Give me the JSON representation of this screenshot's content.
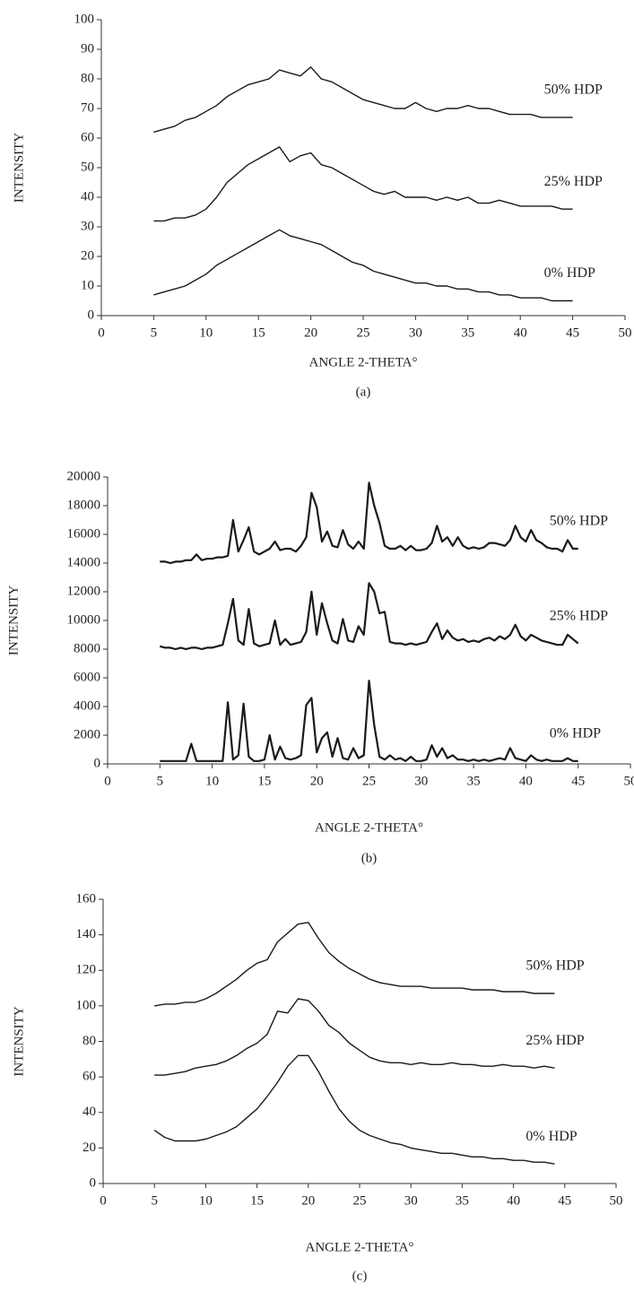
{
  "chart_data": [
    {
      "type": "line",
      "y_label": "INTENSITY",
      "x_label": "ANGLE 2-THETA°",
      "caption": "(a)",
      "xlim": [
        0,
        50
      ],
      "ylim": [
        0,
        100
      ],
      "xticks": [
        0,
        5,
        10,
        15,
        20,
        25,
        30,
        35,
        40,
        45,
        50
      ],
      "yticks": [
        0,
        10,
        20,
        30,
        40,
        50,
        60,
        70,
        80,
        90,
        100
      ],
      "x": [
        5,
        6,
        7,
        8,
        9,
        10,
        11,
        12,
        13,
        14,
        15,
        16,
        17,
        18,
        19,
        20,
        21,
        22,
        23,
        24,
        25,
        26,
        27,
        28,
        29,
        30,
        31,
        32,
        33,
        34,
        35,
        36,
        37,
        38,
        39,
        40,
        41,
        42,
        43,
        44,
        45
      ],
      "series": [
        {
          "name": "50% HDP",
          "color": "#1a1a1a",
          "values": [
            62,
            63,
            64,
            66,
            67,
            69,
            71,
            74,
            76,
            78,
            79,
            80,
            83,
            82,
            81,
            84,
            80,
            79,
            77,
            75,
            73,
            72,
            71,
            70,
            70,
            72,
            70,
            69,
            70,
            70,
            71,
            70,
            70,
            69,
            68,
            68,
            68,
            67,
            67,
            67,
            67
          ]
        },
        {
          "name": "25% HDP",
          "color": "#1a1a1a",
          "values": [
            32,
            32,
            33,
            33,
            34,
            36,
            40,
            45,
            48,
            51,
            53,
            55,
            57,
            52,
            54,
            55,
            51,
            50,
            48,
            46,
            44,
            42,
            41,
            42,
            40,
            40,
            40,
            39,
            40,
            39,
            40,
            38,
            38,
            39,
            38,
            37,
            37,
            37,
            37,
            36,
            36
          ]
        },
        {
          "name": "0% HDP",
          "color": "#1a1a1a",
          "values": [
            7,
            8,
            9,
            10,
            12,
            14,
            17,
            19,
            21,
            23,
            25,
            27,
            29,
            27,
            26,
            25,
            24,
            22,
            20,
            18,
            17,
            15,
            14,
            13,
            12,
            11,
            11,
            10,
            10,
            9,
            9,
            8,
            8,
            7,
            7,
            6,
            6,
            6,
            5,
            5,
            5
          ]
        }
      ]
    },
    {
      "type": "line",
      "y_label": "INTENSITY",
      "x_label": "ANGLE 2-THETA°",
      "caption": "(b)",
      "xlim": [
        0,
        50
      ],
      "ylim": [
        0,
        20000
      ],
      "xticks": [
        0,
        5,
        10,
        15,
        20,
        25,
        30,
        35,
        40,
        45,
        50
      ],
      "yticks": [
        0,
        2000,
        4000,
        6000,
        8000,
        10000,
        12000,
        14000,
        16000,
        18000,
        20000
      ],
      "x": [
        5,
        5.5,
        6,
        6.5,
        7,
        7.5,
        8,
        8.5,
        9,
        9.5,
        10,
        10.5,
        11,
        11.5,
        12,
        12.5,
        13,
        13.5,
        14,
        14.5,
        15,
        15.5,
        16,
        16.5,
        17,
        17.5,
        18,
        18.5,
        19,
        19.5,
        20,
        20.5,
        21,
        21.5,
        22,
        22.5,
        23,
        23.5,
        24,
        24.5,
        25,
        25.5,
        26,
        26.5,
        27,
        27.5,
        28,
        28.5,
        29,
        29.5,
        30,
        30.5,
        31,
        31.5,
        32,
        32.5,
        33,
        33.5,
        34,
        34.5,
        35,
        35.5,
        36,
        36.5,
        37,
        37.5,
        38,
        38.5,
        39,
        39.5,
        40,
        40.5,
        41,
        41.5,
        42,
        42.5,
        43,
        43.5,
        44,
        44.5,
        45
      ],
      "series": [
        {
          "name": "50% HDP",
          "color": "#1a1a1a",
          "values": [
            14100,
            14100,
            14000,
            14100,
            14100,
            14200,
            14200,
            14600,
            14200,
            14300,
            14300,
            14400,
            14400,
            14500,
            17000,
            14800,
            15600,
            16500,
            14800,
            14600,
            14800,
            15000,
            15500,
            14900,
            15000,
            15000,
            14800,
            15200,
            15800,
            18900,
            17900,
            15500,
            16200,
            15200,
            15100,
            16300,
            15300,
            15000,
            15500,
            15000,
            19600,
            18000,
            16800,
            15200,
            15000,
            15000,
            15200,
            14900,
            15200,
            14900,
            14900,
            15000,
            15400,
            16600,
            15500,
            15800,
            15200,
            15800,
            15200,
            15000,
            15100,
            15000,
            15100,
            15400,
            15400,
            15300,
            15200,
            15600,
            16600,
            15800,
            15500,
            16300,
            15600,
            15400,
            15100,
            15000,
            15000,
            14800,
            15600,
            15000,
            15000
          ]
        },
        {
          "name": "25% HDP",
          "color": "#1a1a1a",
          "values": [
            8200,
            8100,
            8100,
            8000,
            8100,
            8000,
            8100,
            8100,
            8000,
            8100,
            8100,
            8200,
            8300,
            9800,
            11500,
            8600,
            8300,
            10800,
            8400,
            8200,
            8300,
            8400,
            10000,
            8300,
            8700,
            8300,
            8400,
            8500,
            9200,
            12000,
            9000,
            11200,
            9800,
            8600,
            8400,
            10100,
            8600,
            8500,
            9600,
            9000,
            12600,
            12000,
            10500,
            10600,
            8500,
            8400,
            8400,
            8300,
            8400,
            8300,
            8400,
            8500,
            9200,
            9800,
            8700,
            9300,
            8800,
            8600,
            8700,
            8500,
            8600,
            8500,
            8700,
            8800,
            8600,
            8900,
            8700,
            9000,
            9700,
            8900,
            8600,
            9000,
            8800,
            8600,
            8500,
            8400,
            8300,
            8300,
            9000,
            8700,
            8400
          ]
        },
        {
          "name": "0% HDP",
          "color": "#1a1a1a",
          "values": [
            200,
            200,
            200,
            200,
            200,
            200,
            1400,
            200,
            200,
            200,
            200,
            200,
            200,
            4300,
            300,
            600,
            4200,
            500,
            200,
            200,
            300,
            2000,
            300,
            1200,
            400,
            300,
            400,
            600,
            4100,
            4600,
            800,
            1800,
            2200,
            500,
            1800,
            400,
            300,
            1100,
            400,
            600,
            5800,
            2700,
            500,
            300,
            600,
            300,
            400,
            200,
            500,
            200,
            200,
            300,
            1300,
            500,
            1100,
            400,
            600,
            300,
            300,
            200,
            300,
            200,
            300,
            200,
            300,
            400,
            300,
            1100,
            400,
            300,
            200,
            600,
            300,
            200,
            300,
            200,
            200,
            200,
            400,
            200,
            200
          ]
        }
      ]
    },
    {
      "type": "line",
      "y_label": "INTENSITY",
      "x_label": "ANGLE 2-THETA°",
      "caption": "(c)",
      "xlim": [
        0,
        50
      ],
      "ylim": [
        0,
        160
      ],
      "xticks": [
        0,
        5,
        10,
        15,
        20,
        25,
        30,
        35,
        40,
        45,
        50
      ],
      "yticks": [
        0,
        20,
        40,
        60,
        80,
        100,
        120,
        140,
        160
      ],
      "x": [
        5,
        6,
        7,
        8,
        9,
        10,
        11,
        12,
        13,
        14,
        15,
        16,
        17,
        18,
        19,
        20,
        21,
        22,
        23,
        24,
        25,
        26,
        27,
        28,
        29,
        30,
        31,
        32,
        33,
        34,
        35,
        36,
        37,
        38,
        39,
        40,
        41,
        42,
        43,
        44
      ],
      "series": [
        {
          "name": "50% HDP",
          "color": "#1a1a1a",
          "values": [
            100,
            101,
            101,
            102,
            102,
            104,
            107,
            111,
            115,
            120,
            124,
            126,
            136,
            141,
            146,
            147,
            138,
            130,
            125,
            121,
            118,
            115,
            113,
            112,
            111,
            111,
            111,
            110,
            110,
            110,
            110,
            109,
            109,
            109,
            108,
            108,
            108,
            107,
            107,
            107
          ]
        },
        {
          "name": "25% HDP",
          "color": "#1a1a1a",
          "values": [
            61,
            61,
            62,
            63,
            65,
            66,
            67,
            69,
            72,
            76,
            79,
            84,
            97,
            96,
            104,
            103,
            97,
            89,
            85,
            79,
            75,
            71,
            69,
            68,
            68,
            67,
            68,
            67,
            67,
            68,
            67,
            67,
            66,
            66,
            67,
            66,
            66,
            65,
            66,
            65
          ]
        },
        {
          "name": "0% HDP",
          "color": "#1a1a1a",
          "values": [
            30,
            26,
            24,
            24,
            24,
            25,
            27,
            29,
            32,
            37,
            42,
            49,
            57,
            66,
            72,
            72,
            63,
            52,
            42,
            35,
            30,
            27,
            25,
            23,
            22,
            20,
            19,
            18,
            17,
            17,
            16,
            15,
            15,
            14,
            14,
            13,
            13,
            12,
            12,
            11
          ]
        }
      ]
    }
  ]
}
